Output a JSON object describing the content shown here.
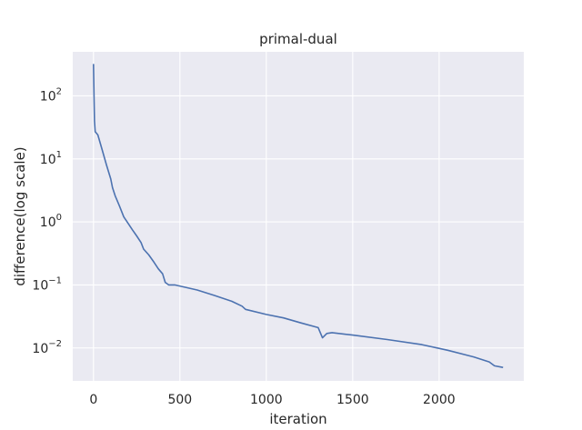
{
  "chart_data": {
    "type": "line",
    "title": "primal-dual",
    "xlabel": "iteration",
    "ylabel": "difference(log scale)",
    "xlim": [
      -120,
      2490
    ],
    "ylim": [
      0.003,
      500
    ],
    "yscale": "log",
    "grid": true,
    "x_ticks": [
      {
        "value": 0,
        "label": "0"
      },
      {
        "value": 500,
        "label": "500"
      },
      {
        "value": 1000,
        "label": "1000"
      },
      {
        "value": 1500,
        "label": "1500"
      },
      {
        "value": 2000,
        "label": "2000"
      }
    ],
    "y_ticks": [
      {
        "value": 0.01,
        "base": "10",
        "exp": "−2"
      },
      {
        "value": 0.1,
        "base": "10",
        "exp": "−1"
      },
      {
        "value": 1,
        "base": "10",
        "exp": "0"
      },
      {
        "value": 10,
        "base": "10",
        "exp": "1"
      },
      {
        "value": 100,
        "base": "10",
        "exp": "2"
      }
    ],
    "colors": {
      "background": "#eaeaf2",
      "grid": "#ffffff",
      "line": "#4c72b0",
      "text": "#262626"
    },
    "series": [
      {
        "values": [
          [
            0,
            320
          ],
          [
            3,
            100
          ],
          [
            6,
            40
          ],
          [
            10,
            27
          ],
          [
            25,
            24
          ],
          [
            50,
            14
          ],
          [
            75,
            8
          ],
          [
            100,
            4.8
          ],
          [
            110,
            3.5
          ],
          [
            125,
            2.6
          ],
          [
            150,
            1.8
          ],
          [
            175,
            1.2
          ],
          [
            200,
            0.95
          ],
          [
            225,
            0.75
          ],
          [
            250,
            0.6
          ],
          [
            275,
            0.47
          ],
          [
            290,
            0.37
          ],
          [
            320,
            0.3
          ],
          [
            350,
            0.23
          ],
          [
            375,
            0.18
          ],
          [
            400,
            0.15
          ],
          [
            415,
            0.11
          ],
          [
            435,
            0.1
          ],
          [
            450,
            0.1
          ],
          [
            470,
            0.1
          ],
          [
            600,
            0.083
          ],
          [
            700,
            0.068
          ],
          [
            800,
            0.055
          ],
          [
            860,
            0.046
          ],
          [
            880,
            0.041
          ],
          [
            1000,
            0.034
          ],
          [
            1100,
            0.03
          ],
          [
            1200,
            0.025
          ],
          [
            1300,
            0.021
          ],
          [
            1325,
            0.0145
          ],
          [
            1350,
            0.017
          ],
          [
            1380,
            0.0175
          ],
          [
            1500,
            0.016
          ],
          [
            1700,
            0.0136
          ],
          [
            1900,
            0.0113
          ],
          [
            2050,
            0.0092
          ],
          [
            2200,
            0.0072
          ],
          [
            2290,
            0.006
          ],
          [
            2320,
            0.0052
          ],
          [
            2370,
            0.0049
          ]
        ]
      }
    ]
  }
}
